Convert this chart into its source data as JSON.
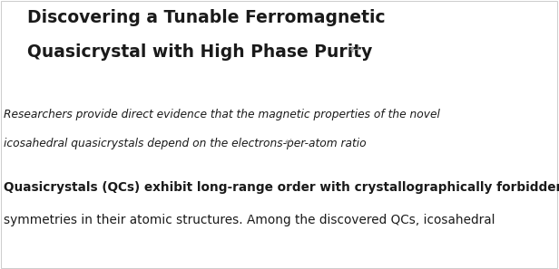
{
  "title_line1": "Discovering a Tunable Ferromagnetic",
  "title_line2": "Quasicrystal with High Phase Purity",
  "title_return_symbol": "↵",
  "subtitle_line1": "Researchers provide direct evidence that the magnetic properties of the novel",
  "subtitle_line2": "icosahedral quasicrystals depend on the electrons-per-atom ratio",
  "subtitle_return_symbol": "↵",
  "body_line1": "Quasicrystals (QCs) exhibit long-range order with crystallographically forbidden",
  "body_line2": "symmetries in their atomic structures. Among the discovered QCs, icosahedral",
  "bg_color": "#ffffff",
  "title_color": "#1a1a1a",
  "subtitle_color": "#1a1a1a",
  "body_color": "#1a1a1a",
  "border_color": "#cccccc",
  "title_fontsize": 13.5,
  "subtitle_fontsize": 8.8,
  "body_fontsize": 9.8,
  "fig_width": 6.16,
  "fig_height": 2.97
}
